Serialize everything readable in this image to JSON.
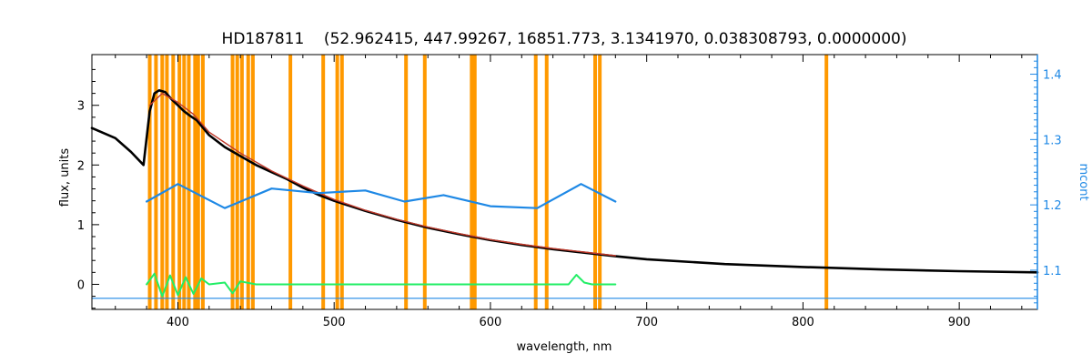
{
  "title": "HD187811    (52.962415, 447.99267, 16851.773, 3.1341970, 0.038308793, 0.0000000)",
  "colors": {
    "flux": "#000000",
    "model": "#c0392b",
    "residual": "#22ee66",
    "mcont": "#1e88e5",
    "mask": "#ff9900",
    "axis": "#000000",
    "right_axis": "#1e88e5"
  },
  "chart_data": {
    "type": "line",
    "title": "HD187811    (52.962415, 447.99267, 16851.773, 3.1341970, 0.038308793, 0.0000000)",
    "xlabel": "wavelength, nm",
    "ylabel": "flux, units",
    "y2label": "mcont",
    "xlim": [
      345,
      950
    ],
    "ylim": [
      -0.42,
      3.85
    ],
    "y2lim": [
      1.04,
      1.43
    ],
    "xticks": [
      400,
      500,
      600,
      700,
      800,
      900
    ],
    "yticks": [
      0,
      1,
      2,
      3
    ],
    "y2ticks": [
      1.1,
      1.2,
      1.3,
      1.4
    ],
    "grid": false,
    "mask_lines_nm": [
      382,
      386,
      390,
      393,
      397,
      401,
      404,
      407,
      411,
      413,
      416,
      435,
      438,
      441,
      445,
      448,
      472,
      493,
      502,
      505,
      546,
      558,
      588,
      590,
      629,
      636,
      667,
      670,
      815
    ],
    "series": [
      {
        "role": "flux",
        "x": [
          345,
          360,
          370,
          378,
          382,
          385,
          388,
          392,
          396,
          400,
          404,
          408,
          412,
          420,
          430,
          440,
          450,
          460,
          470,
          480,
          490,
          500,
          520,
          540,
          560,
          580,
          600,
          620,
          640,
          660,
          680,
          700,
          750,
          800,
          850,
          900,
          950
        ],
        "y": [
          2.62,
          2.45,
          2.22,
          2.0,
          2.9,
          3.2,
          3.25,
          3.22,
          3.1,
          3.0,
          2.9,
          2.82,
          2.75,
          2.5,
          2.3,
          2.15,
          2.0,
          1.88,
          1.76,
          1.62,
          1.5,
          1.4,
          1.23,
          1.08,
          0.95,
          0.84,
          0.74,
          0.66,
          0.59,
          0.53,
          0.47,
          0.42,
          0.34,
          0.29,
          0.25,
          0.22,
          0.2
        ]
      },
      {
        "role": "model",
        "x": [
          382,
          390,
          400,
          410,
          420,
          440,
          460,
          480,
          500,
          520,
          540,
          560,
          580,
          600,
          620,
          640,
          660,
          680
        ],
        "y": [
          3.0,
          3.2,
          3.05,
          2.85,
          2.55,
          2.2,
          1.9,
          1.65,
          1.42,
          1.24,
          1.09,
          0.96,
          0.85,
          0.75,
          0.67,
          0.6,
          0.54,
          0.48
        ]
      },
      {
        "role": "mcont",
        "axis": "right",
        "x": [
          380,
          400,
          430,
          460,
          490,
          520,
          545,
          570,
          600,
          630,
          658,
          680
        ],
        "y": [
          1.205,
          1.232,
          1.195,
          1.225,
          1.218,
          1.222,
          1.205,
          1.215,
          1.198,
          1.195,
          1.232,
          1.205
        ]
      },
      {
        "role": "residual",
        "x": [
          380,
          385,
          390,
          395,
          400,
          405,
          410,
          415,
          420,
          430,
          435,
          440,
          450,
          500,
          550,
          600,
          650,
          655,
          660,
          665,
          680
        ],
        "y": [
          0.0,
          0.18,
          -0.2,
          0.15,
          -0.18,
          0.12,
          -0.16,
          0.1,
          0.0,
          0.03,
          -0.15,
          0.05,
          0.0,
          0.0,
          0.0,
          0.0,
          0.0,
          0.16,
          0.03,
          0.0,
          0.0
        ]
      },
      {
        "role": "zero-line",
        "axis": "right",
        "x": [
          345,
          950
        ],
        "y": [
          1.057,
          1.057
        ]
      }
    ]
  }
}
